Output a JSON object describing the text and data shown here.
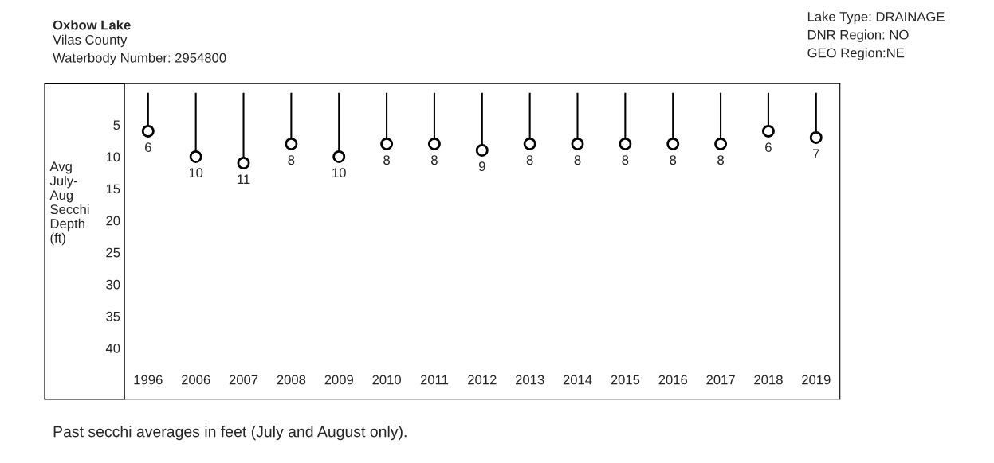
{
  "chart_data": {
    "type": "lollipop",
    "title": "Oxbow Lake",
    "subtitle": "Vilas County\nWaterbody Number: 2954800",
    "ylabel": "Avg\nJuly-\nAug\nSecchi\nDepth\n(ft)",
    "annotations": [
      "Lake Type: DRAINAGE\nDNR Region: NO\nGEO Region:NE",
      "Past secchi averages in feet (July and August only)."
    ],
    "categories": [
      "1996",
      "2006",
      "2007",
      "2008",
      "2009",
      "2010",
      "2011",
      "2012",
      "2013",
      "2014",
      "2015",
      "2016",
      "2017",
      "2018",
      "2019"
    ],
    "values": [
      6,
      10,
      11,
      8,
      10,
      8,
      8,
      9,
      8,
      8,
      8,
      8,
      8,
      6,
      7
    ],
    "color": "#000000",
    "marker": "circle",
    "data_labels": true,
    "ylim": [
      48,
      -1.5
    ],
    "yticks": [
      5,
      10,
      15,
      20,
      25,
      30,
      35,
      40
    ],
    "grid": false,
    "legend": false
  }
}
